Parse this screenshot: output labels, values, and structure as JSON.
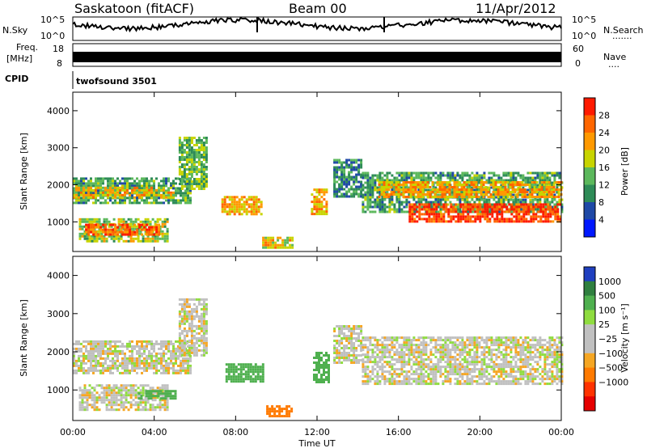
{
  "header": {
    "station": "Saskatoon (fitACF)",
    "beam": "Beam 00",
    "date": "11/Apr/2012"
  },
  "strip_labels": {
    "nsky": "N.Sky",
    "nsearch": "N.Search",
    "nsearch_dots": "·······",
    "freq_line1": "Freq.",
    "freq_line2": "[MHz]",
    "nave": "Nave",
    "nave_dots": "····",
    "cpid": "CPID",
    "cpid_value": "twofsound 3501"
  },
  "strip_ticks": {
    "noise_left_top": "10^5",
    "noise_left_bottom": "10^0",
    "noise_right_top": "10^5",
    "noise_right_bottom": "10^0",
    "freq_top": "18",
    "freq_bottom": "8",
    "nave_top": "60",
    "nave_bottom": "0"
  },
  "colors": {
    "power_scale": [
      "#0018ff",
      "#1f49a6",
      "#2e8b57",
      "#5cb85c",
      "#c8d400",
      "#ff9900",
      "#ff6600",
      "#ff1a00"
    ],
    "velocity_scale": [
      "#1f3fbf",
      "#2f7f3f",
      "#4fb04f",
      "#8fdc3f",
      "#c0c0c0",
      "#c0c0c0",
      "#f5a623",
      "#ff7a00",
      "#ff3300",
      "#e60000"
    ]
  },
  "chart_data": [
    {
      "type": "heatmap",
      "name": "power",
      "ylabel": "Slant Range [km]",
      "yticks": [
        "1000",
        "2000",
        "3000",
        "4000"
      ],
      "ylim": [
        200,
        4500
      ],
      "xticks": [
        "00:00",
        "04:00",
        "08:00",
        "12:00",
        "16:00",
        "20:00",
        "00:00"
      ],
      "xlim_hours": [
        0,
        24
      ],
      "colorbar_label": "Power [dB]",
      "colorbar_ticks": [
        "4",
        "8",
        "12",
        "16",
        "20",
        "24",
        "28"
      ],
      "colorbar_range": [
        0,
        32
      ],
      "bands": [
        {
          "t0": 0.0,
          "t1": 5.8,
          "r0": 1500,
          "r1": 2200,
          "level": 12
        },
        {
          "t0": 0.0,
          "t1": 5.0,
          "r0": 1650,
          "r1": 1950,
          "level": 20
        },
        {
          "t0": 0.3,
          "t1": 4.7,
          "r0": 500,
          "r1": 1100,
          "level": 16
        },
        {
          "t0": 0.6,
          "t1": 4.2,
          "r0": 650,
          "r1": 950,
          "level": 26
        },
        {
          "t0": 5.2,
          "t1": 6.6,
          "r0": 1900,
          "r1": 3300,
          "level": 14
        },
        {
          "t0": 7.3,
          "t1": 9.3,
          "r0": 1200,
          "r1": 1700,
          "level": 22
        },
        {
          "t0": 9.3,
          "t1": 10.8,
          "r0": 300,
          "r1": 600,
          "level": 20
        },
        {
          "t0": 11.7,
          "t1": 12.5,
          "r0": 1200,
          "r1": 1900,
          "level": 22
        },
        {
          "t0": 12.8,
          "t1": 14.2,
          "r0": 1700,
          "r1": 2700,
          "level": 10
        },
        {
          "t0": 14.2,
          "t1": 24.0,
          "r0": 1250,
          "r1": 2350,
          "level": 12
        },
        {
          "t0": 15.0,
          "t1": 24.0,
          "r0": 1700,
          "r1": 2100,
          "level": 22
        },
        {
          "t0": 16.5,
          "t1": 24.0,
          "r0": 1000,
          "r1": 1500,
          "level": 28
        }
      ]
    },
    {
      "type": "heatmap",
      "name": "velocity",
      "ylabel": "Slant Range [km]",
      "yticks": [
        "1000",
        "2000",
        "3000",
        "4000"
      ],
      "ylim": [
        200,
        4500
      ],
      "xticks": [
        "00:00",
        "04:00",
        "08:00",
        "12:00",
        "16:00",
        "20:00",
        "00:00"
      ],
      "xlim_hours": [
        0,
        24
      ],
      "xlabel": "Time UT",
      "colorbar_label": "Velocity [m s⁻¹]",
      "colorbar_ticks": [
        "1000",
        "500",
        "100",
        "25",
        "−25",
        "−100",
        "−500",
        "−1000"
      ],
      "bands": [
        {
          "t0": 0.0,
          "t1": 5.8,
          "r0": 1450,
          "r1": 2300,
          "value": 0
        },
        {
          "t0": 0.3,
          "t1": 4.7,
          "r0": 500,
          "r1": 1150,
          "value": 0
        },
        {
          "t0": 3.2,
          "t1": 5.0,
          "r0": 750,
          "r1": 1000,
          "value": 150
        },
        {
          "t0": 5.2,
          "t1": 6.6,
          "r0": 1900,
          "r1": 3400,
          "value": 0
        },
        {
          "t0": 7.5,
          "t1": 9.3,
          "r0": 1200,
          "r1": 1700,
          "value": 150
        },
        {
          "t0": 9.5,
          "t1": 10.8,
          "r0": 300,
          "r1": 600,
          "value": -200
        },
        {
          "t0": 11.8,
          "t1": 12.6,
          "r0": 1200,
          "r1": 2000,
          "value": 150
        },
        {
          "t0": 12.8,
          "t1": 14.2,
          "r0": 1700,
          "r1": 2700,
          "value": 0
        },
        {
          "t0": 14.2,
          "t1": 24.0,
          "r0": 1150,
          "r1": 2400,
          "value": 0
        }
      ]
    }
  ]
}
